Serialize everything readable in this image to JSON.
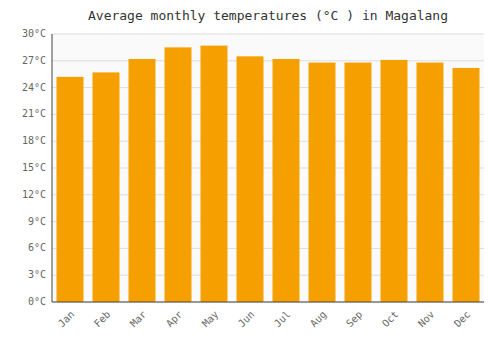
{
  "chart_data": {
    "type": "bar",
    "title": "Average monthly temperatures (°C ) in Magalang",
    "categories": [
      "Jan",
      "Feb",
      "Mar",
      "Apr",
      "May",
      "Jun",
      "Jul",
      "Aug",
      "Sep",
      "Oct",
      "Nov",
      "Dec"
    ],
    "values": [
      25.2,
      25.7,
      27.2,
      28.5,
      28.7,
      27.5,
      27.2,
      26.8,
      26.8,
      27.1,
      26.8,
      26.2
    ],
    "color": "#F5A000",
    "ylim": [
      0,
      30
    ],
    "yticks": [
      {
        "value": 0,
        "label": "0°C"
      },
      {
        "value": 3,
        "label": "3°C"
      },
      {
        "value": 6,
        "label": "6°C"
      },
      {
        "value": 9,
        "label": "9°C"
      },
      {
        "value": 12,
        "label": "12°C"
      },
      {
        "value": 15,
        "label": "15°C"
      },
      {
        "value": 18,
        "label": "18°C"
      },
      {
        "value": 21,
        "label": "21°C"
      },
      {
        "value": 24,
        "label": "24°C"
      },
      {
        "value": 27,
        "label": "27°C"
      },
      {
        "value": 30,
        "label": "30°C"
      }
    ],
    "grid": true
  }
}
